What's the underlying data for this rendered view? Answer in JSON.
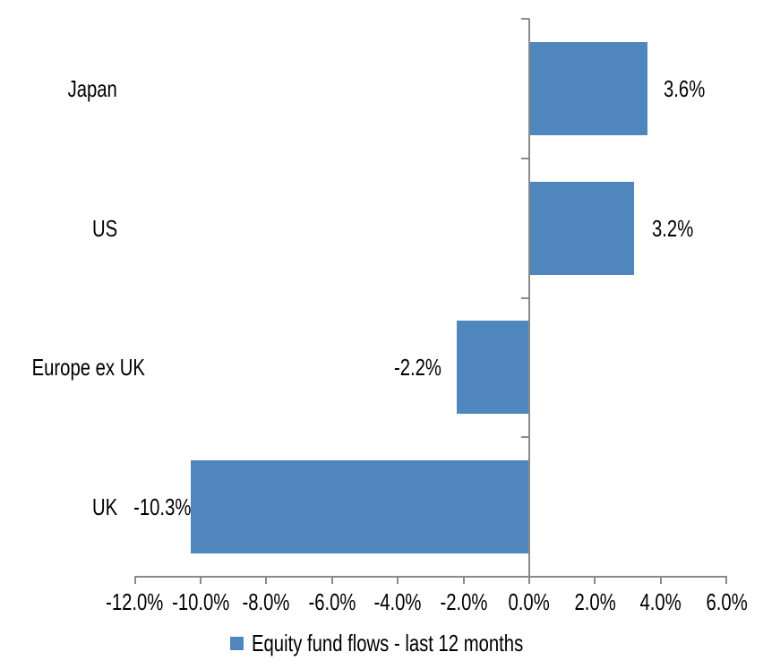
{
  "chart_data": {
    "type": "bar",
    "orientation": "horizontal",
    "title": "",
    "categories": [
      "Japan",
      "US",
      "Europe ex UK",
      "UK"
    ],
    "series": [
      {
        "name": "Equity fund flows - last 12 months",
        "values": [
          3.6,
          3.2,
          -2.2,
          -10.3
        ],
        "value_labels": [
          "3.6%",
          "3.2%",
          "-2.2%",
          "-10.3%"
        ],
        "color": "#4e86bd"
      }
    ],
    "x_axis": {
      "min": -12,
      "max": 6,
      "tick_step": 2,
      "ticks": [
        {
          "value": -12,
          "label": "-12.0%"
        },
        {
          "value": -10,
          "label": "-10.0%"
        },
        {
          "value": -8,
          "label": "-8.0%"
        },
        {
          "value": -6,
          "label": "-6.0%"
        },
        {
          "value": -4,
          "label": "-4.0%"
        },
        {
          "value": -2,
          "label": "-2.0%"
        },
        {
          "value": 0,
          "label": "0.0%"
        },
        {
          "value": 2,
          "label": "2.0%"
        },
        {
          "value": 4,
          "label": "4.0%"
        },
        {
          "value": 6,
          "label": "6.0%"
        }
      ]
    },
    "grid": false,
    "legend_position": "bottom",
    "colors": {
      "bar": "#4e86bd",
      "axis": "#8a8a8a",
      "text": "#000000",
      "background": "#ffffff"
    }
  }
}
